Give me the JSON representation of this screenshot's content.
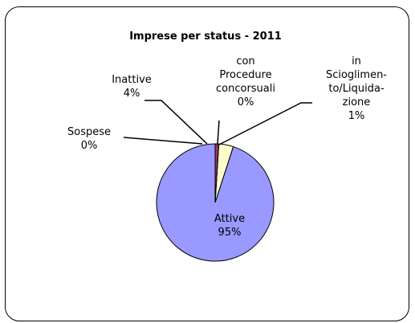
{
  "chart_data": {
    "type": "pie",
    "title": "Imprese per status - 2011",
    "slices": [
      {
        "label": "Attive",
        "value": 95,
        "pct_label": "95%",
        "color": "#9999ff"
      },
      {
        "label": "Sospese",
        "value": 0,
        "pct_label": "0%",
        "color": "#ffffcc"
      },
      {
        "label": "Inattive",
        "value": 4,
        "pct_label": "4%",
        "color": "#ffffcc"
      },
      {
        "label": "con Procedure concorsuali",
        "value": 0,
        "pct_label": "0%",
        "color": "#993366"
      },
      {
        "label": "in Scioglimento/Liquidazione",
        "value": 1,
        "pct_label": "1%",
        "color": "#993366"
      }
    ],
    "legend": "none"
  },
  "labels": {
    "attive": [
      "Attive",
      "95%"
    ],
    "sospese": [
      "Sospese",
      "0%"
    ],
    "inattive": [
      "Inattive",
      "4%"
    ],
    "procedure": [
      "con",
      "Procedure",
      "concorsuali",
      "0%"
    ],
    "scioglimento": [
      "in",
      "Scioglimen-",
      "to/Liquida-",
      "zione",
      "1%"
    ]
  }
}
